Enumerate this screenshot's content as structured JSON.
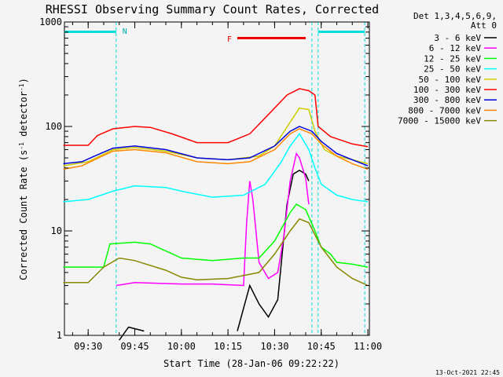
{
  "chart_data": {
    "type": "line",
    "title": "RHESSI Observing Summary Count Rates, Corrected",
    "xlabel": "Start Time (28-Jan-06 09:22:22)",
    "ylabel": "Corrected Count Rate (s",
    "ylabel_sup1": "-1",
    "ylabel_mid": " detector",
    "ylabel_sup2": "-1",
    "ylabel_end": ")",
    "y_scale": "log",
    "ylim": [
      1,
      1000
    ],
    "xlim": [
      "09:22:22",
      "11:00:30"
    ],
    "x_tick_labels": [
      "09:30",
      "09:45",
      "10:00",
      "10:15",
      "10:30",
      "10:45",
      "11:00"
    ],
    "y_tick_labels": [
      "1",
      "10",
      "100",
      "1000"
    ],
    "legend_header": [
      "Det 1,3,4,5,6,9,",
      "Att 0"
    ],
    "legend_placement": "right",
    "timestamp": "13-Oct-2021 22:45",
    "annotations": {
      "night_label": "N",
      "flare_label": "F",
      "night_bars": [
        [
          "09:22:22",
          "09:39:00"
        ],
        [
          "10:44:00",
          "10:59:00"
        ]
      ],
      "flare_bar": [
        "10:18:00",
        "10:40:00"
      ],
      "vertical_markers": [
        "09:39:00",
        "10:42:00",
        "10:44:00",
        "10:59:00"
      ]
    },
    "series": [
      {
        "name": "3 - 6 keV",
        "color": "#000000",
        "x": [
          "09:22",
          "09:37",
          "09:40",
          "09:43",
          "09:48",
          "10:00",
          "10:10",
          "10:18",
          "10:22",
          "10:25",
          "10:28",
          "10:31",
          "10:34",
          "10:36",
          "10:38",
          "10:40",
          "10:41",
          "10:42"
        ],
        "values": [
          null,
          null,
          0.9,
          1.2,
          1.1,
          null,
          null,
          1.1,
          3.0,
          2.0,
          1.5,
          2.2,
          18,
          35,
          38,
          35,
          30,
          null
        ]
      },
      {
        "name": "6 - 12 keV",
        "color": "#ff00ff",
        "x": [
          "09:22",
          "09:37",
          "09:39",
          "09:45",
          "10:00",
          "10:10",
          "10:20",
          "10:21",
          "10:22",
          "10:23",
          "10:25",
          "10:28",
          "10:31",
          "10:33",
          "10:35",
          "10:37",
          "10:38",
          "10:40",
          "10:41",
          "10:42",
          "10:43"
        ],
        "values": [
          null,
          null,
          3.0,
          3.2,
          3.1,
          3.1,
          3.0,
          12,
          30,
          20,
          5,
          3.5,
          4,
          9,
          30,
          55,
          50,
          32,
          18,
          null,
          null
        ]
      },
      {
        "name": "12 - 25 keV",
        "color": "#00ff00",
        "x": [
          "09:22",
          "09:35",
          "09:37",
          "09:45",
          "09:50",
          "10:00",
          "10:10",
          "10:20",
          "10:25",
          "10:30",
          "10:35",
          "10:37",
          "10:40",
          "10:43",
          "10:45",
          "10:48",
          "10:50",
          "10:55",
          "11:00"
        ],
        "values": [
          4.5,
          4.5,
          7.5,
          7.8,
          7.5,
          5.5,
          5.2,
          5.5,
          5.5,
          8,
          15,
          18,
          16,
          10,
          7,
          6,
          5,
          4.8,
          4.5
        ]
      },
      {
        "name": "25 - 50 keV",
        "color": "#00ffff",
        "x": [
          "09:22",
          "09:30",
          "09:38",
          "09:45",
          "09:55",
          "10:00",
          "10:10",
          "10:20",
          "10:27",
          "10:32",
          "10:35",
          "10:38",
          "10:41",
          "10:43",
          "10:45",
          "10:50",
          "10:55",
          "11:00"
        ],
        "values": [
          19,
          20,
          24,
          27,
          26,
          24,
          21,
          22,
          28,
          45,
          65,
          85,
          60,
          40,
          28,
          22,
          20,
          19
        ]
      },
      {
        "name": "50 - 100 keV",
        "color": "#cccc00",
        "x": [
          "09:22",
          "09:30",
          "09:38",
          "09:45",
          "09:55",
          "10:05",
          "10:15",
          "10:25",
          "10:30",
          "10:35",
          "10:38",
          "10:41",
          "10:43",
          "10:46",
          "10:50",
          "10:55",
          "11:00"
        ],
        "values": [
          42,
          46,
          60,
          63,
          58,
          50,
          48,
          52,
          65,
          110,
          150,
          145,
          90,
          60,
          52,
          48,
          44
        ]
      },
      {
        "name": "100 - 300 keV",
        "color": "#ff0000",
        "x": [
          "09:22",
          "09:30",
          "09:33",
          "09:38",
          "09:45",
          "09:50",
          "09:57",
          "10:05",
          "10:15",
          "10:22",
          "10:28",
          "10:34",
          "10:38",
          "10:41",
          "10:43",
          "10:44",
          "10:48",
          "10:55",
          "11:00"
        ],
        "values": [
          66,
          66,
          82,
          95,
          100,
          98,
          85,
          70,
          70,
          85,
          130,
          200,
          230,
          220,
          200,
          100,
          80,
          68,
          64
        ]
      },
      {
        "name": "300 - 800 keV",
        "color": "#0000dd",
        "x": [
          "09:22",
          "09:28",
          "09:32",
          "09:38",
          "09:45",
          "09:55",
          "10:05",
          "10:15",
          "10:22",
          "10:30",
          "10:35",
          "10:38",
          "10:42",
          "10:45",
          "10:50",
          "10:55",
          "11:00"
        ],
        "values": [
          44,
          46,
          52,
          62,
          65,
          60,
          50,
          48,
          50,
          65,
          90,
          100,
          90,
          72,
          55,
          48,
          42
        ]
      },
      {
        "name": "800 - 7000 keV",
        "color": "#ff8800",
        "x": [
          "09:22",
          "09:28",
          "09:32",
          "09:38",
          "09:45",
          "09:55",
          "10:05",
          "10:15",
          "10:22",
          "10:30",
          "10:35",
          "10:38",
          "10:42",
          "10:45",
          "10:50",
          "10:55",
          "11:00"
        ],
        "values": [
          39,
          42,
          48,
          58,
          60,
          56,
          46,
          44,
          46,
          60,
          85,
          95,
          85,
          68,
          52,
          44,
          39
        ]
      },
      {
        "name": "7000 - 15000 keV",
        "color": "#888800",
        "x": [
          "09:22",
          "09:30",
          "09:35",
          "09:40",
          "09:45",
          "09:55",
          "10:00",
          "10:05",
          "10:15",
          "10:25",
          "10:30",
          "10:35",
          "10:38",
          "10:41",
          "10:45",
          "10:50",
          "10:55",
          "11:00"
        ],
        "values": [
          3.2,
          3.2,
          4.5,
          5.5,
          5.2,
          4.2,
          3.6,
          3.4,
          3.5,
          4,
          6,
          10,
          13,
          12,
          7,
          4.5,
          3.5,
          3
        ]
      }
    ]
  }
}
